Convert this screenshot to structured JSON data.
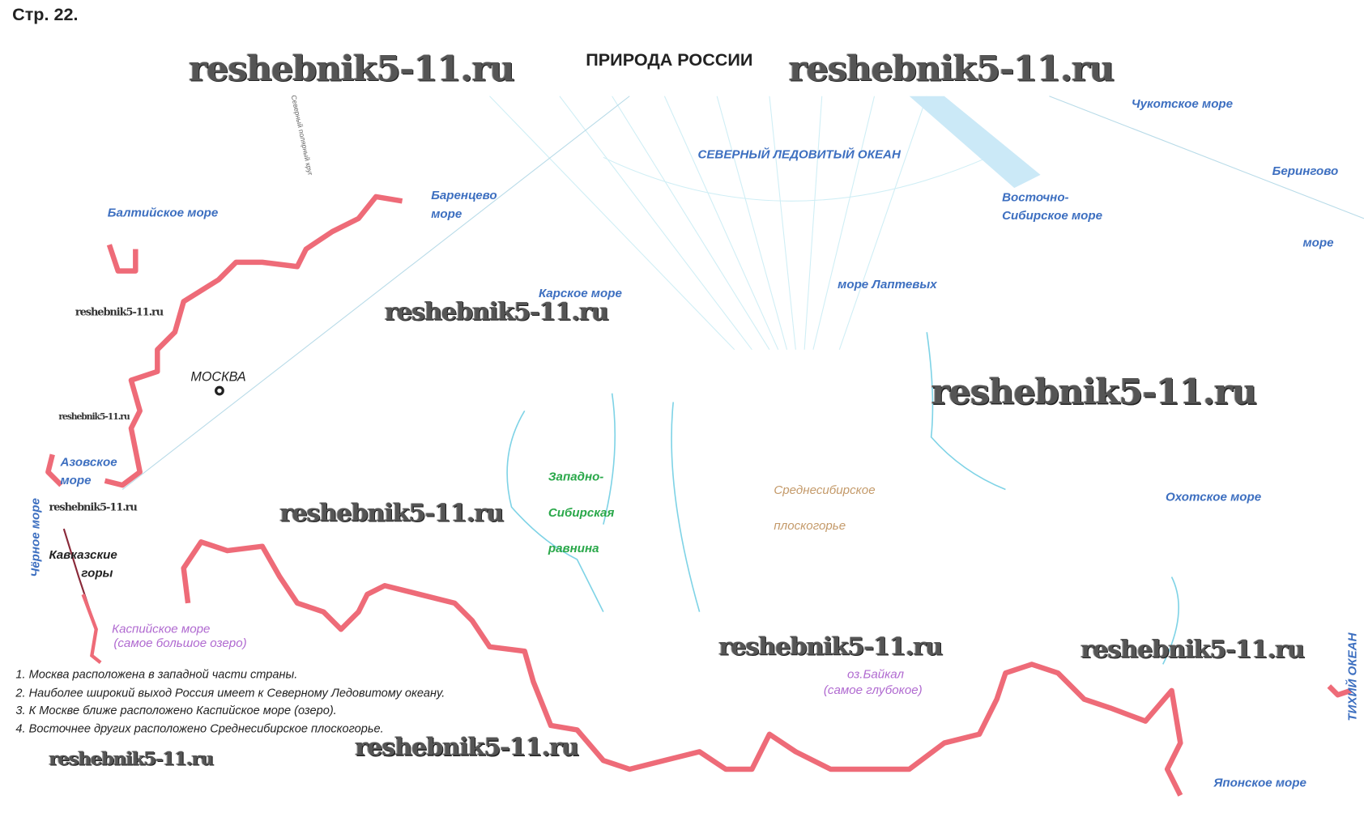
{
  "page_label": "Стр. 22.",
  "map_title": "ПРИРОДА РОССИИ",
  "watermark": "reshebnik5-11.ru",
  "seas": {
    "arctic": "СЕВЕРНЫЙ ЛЕДОВИТЫЙ ОКЕАН",
    "baltic": "Балтийское море",
    "barents_1": "Баренцево",
    "barents_2": "море",
    "kara": "Карское море",
    "laptev": "море Лаптевых",
    "east_siberian_1": "Восточно-",
    "east_siberian_2": "Сибирское море",
    "chukchi": "Чукотское море",
    "bering_1": "Берингово",
    "bering_2": "море",
    "okhotsk": "Охотское море",
    "japan": "Японское море",
    "pacific": "ТИХИЙ ОКЕАН",
    "black": "Чёрное море",
    "azov_1": "Азовское",
    "azov_2": "море"
  },
  "features": {
    "moscow": "МОСКВА",
    "caucasus_1": "Кавказские",
    "caucasus_2": "горы",
    "caspian_1": "Каспийское море",
    "caspian_2": "(самое большое озеро)",
    "west_siberian_1": "Западно-",
    "west_siberian_2": "Сибирская",
    "west_siberian_3": "равнина",
    "central_siberian_1": "Среднесибирское",
    "central_siberian_2": "плоскогорье",
    "baikal_1": "оз.Байкал",
    "baikal_2": "(самое глубокое)",
    "arctic_circle": "Северный полярный круг"
  },
  "notes": [
    "1. Москва расположена в западной части страны.",
    "2. Наиболее широкий выход Россия имеет к Северному Ледовитому океану.",
    "3. К Москве ближе расположено Каспийское море (озеро).",
    "4. Восточнее других расположено Среднесибирское плоскогорье."
  ],
  "colors": {
    "border": "#ee6b78",
    "sea_label": "#3d6fc0",
    "plain": "#2aa84a",
    "plateau": "#c49a6a",
    "lake": "#b06ad0",
    "rivers": "#7fd3e6"
  }
}
